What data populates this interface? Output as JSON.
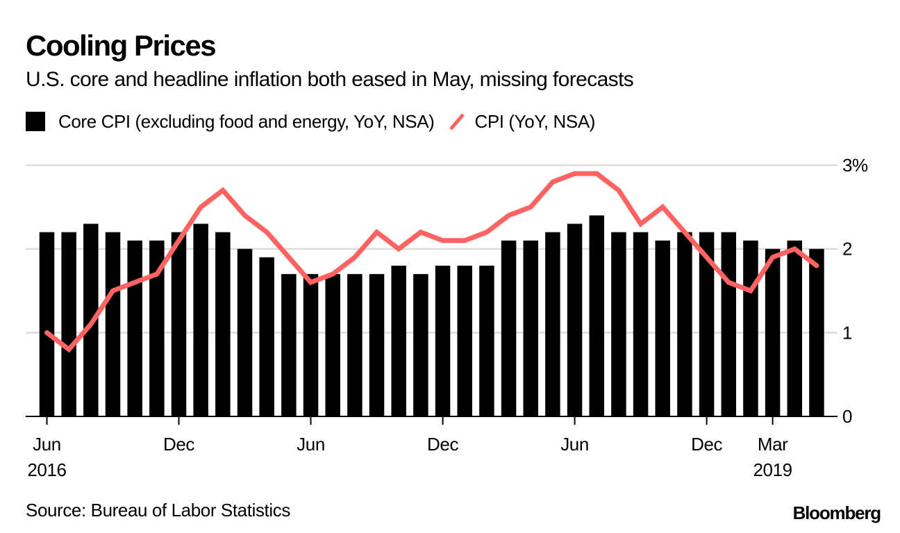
{
  "header": {
    "title": "Cooling Prices",
    "subtitle": "U.S. core and headline inflation both eased in May, missing forecasts"
  },
  "legend": {
    "items": [
      {
        "label": "Core CPI (excluding food and energy, YoY, NSA)",
        "kind": "bar"
      },
      {
        "label": "CPI (YoY, NSA)",
        "kind": "line"
      }
    ]
  },
  "colors": {
    "bar": "#000000",
    "line": "#FF6361",
    "grid": "#DCDCDC",
    "axis": "#000000"
  },
  "footer": {
    "source": "Source: Bureau of Labor Statistics",
    "brand": "Bloomberg"
  },
  "chart_data": {
    "type": "bar",
    "title": "Cooling Prices",
    "subtitle": "U.S. core and headline inflation both eased in May, missing forecasts",
    "xlabel": "",
    "ylabel": "",
    "ylim": [
      0,
      3
    ],
    "y_axis_position": "right",
    "y_ticks": [
      {
        "value": 0,
        "label": "0"
      },
      {
        "value": 1,
        "label": "1"
      },
      {
        "value": 2,
        "label": "2"
      },
      {
        "value": 3,
        "label": "3%"
      }
    ],
    "grid": true,
    "legend_position": "top-left",
    "categories": [
      "Jun 2016",
      "Jul 2016",
      "Aug 2016",
      "Sep 2016",
      "Oct 2016",
      "Nov 2016",
      "Dec 2016",
      "Jan 2017",
      "Feb 2017",
      "Mar 2017",
      "Apr 2017",
      "May 2017",
      "Jun 2017",
      "Jul 2017",
      "Aug 2017",
      "Sep 2017",
      "Oct 2017",
      "Nov 2017",
      "Dec 2017",
      "Jan 2018",
      "Feb 2018",
      "Mar 2018",
      "Apr 2018",
      "May 2018",
      "Jun 2018",
      "Jul 2018",
      "Aug 2018",
      "Sep 2018",
      "Oct 2018",
      "Nov 2018",
      "Dec 2018",
      "Jan 2019",
      "Feb 2019",
      "Mar 2019",
      "Apr 2019",
      "May 2019"
    ],
    "x_ticks": [
      {
        "index": 0,
        "label": "Jun",
        "sublabel": "2016"
      },
      {
        "index": 6,
        "label": "Dec",
        "sublabel": ""
      },
      {
        "index": 12,
        "label": "Jun",
        "sublabel": ""
      },
      {
        "index": 18,
        "label": "Dec",
        "sublabel": ""
      },
      {
        "index": 24,
        "label": "Jun",
        "sublabel": ""
      },
      {
        "index": 30,
        "label": "Dec",
        "sublabel": ""
      },
      {
        "index": 33,
        "label": "Mar",
        "sublabel": "2019"
      }
    ],
    "series": [
      {
        "name": "Core CPI (excluding food and energy, YoY, NSA)",
        "type": "bar",
        "values": [
          2.2,
          2.2,
          2.3,
          2.2,
          2.1,
          2.1,
          2.2,
          2.3,
          2.2,
          2.0,
          1.9,
          1.7,
          1.7,
          1.7,
          1.7,
          1.7,
          1.8,
          1.7,
          1.8,
          1.8,
          1.8,
          2.1,
          2.1,
          2.2,
          2.3,
          2.4,
          2.2,
          2.2,
          2.1,
          2.2,
          2.2,
          2.2,
          2.1,
          2.0,
          2.1,
          2.0
        ]
      },
      {
        "name": "CPI (YoY, NSA)",
        "type": "line",
        "values": [
          1.0,
          0.8,
          1.1,
          1.5,
          1.6,
          1.7,
          2.1,
          2.5,
          2.7,
          2.4,
          2.2,
          1.9,
          1.6,
          1.7,
          1.9,
          2.2,
          2.0,
          2.2,
          2.1,
          2.1,
          2.2,
          2.4,
          2.5,
          2.8,
          2.9,
          2.9,
          2.7,
          2.3,
          2.5,
          2.2,
          1.9,
          1.6,
          1.5,
          1.9,
          2.0,
          1.8
        ]
      }
    ]
  }
}
